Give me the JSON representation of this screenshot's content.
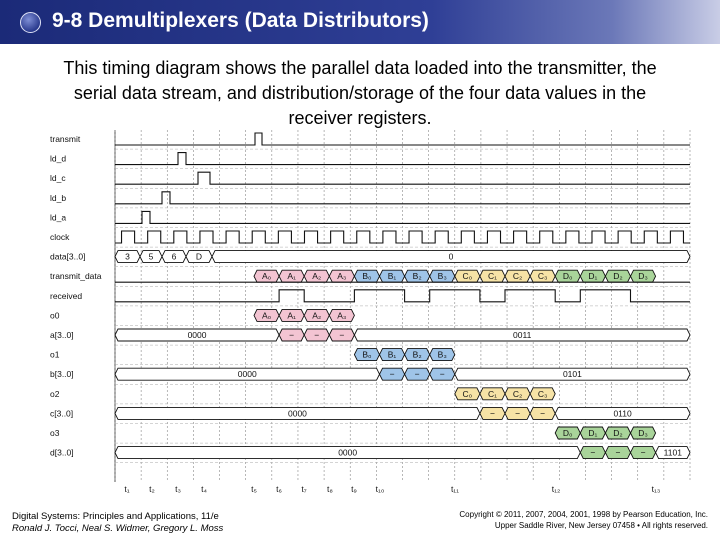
{
  "slide": {
    "title": "9-8 Demultiplexers (Data Distributors)",
    "description": "This timing diagram shows the parallel data loaded into the transmitter, the serial data stream, and distribution/storage of the four data values in the receiver registers."
  },
  "diagram": {
    "signals": [
      "transmit",
      "ld_d",
      "ld_c",
      "ld_b",
      "ld_a",
      "clock",
      "data[3..0]",
      "transmit_data",
      "received",
      "o0",
      "a[3..0]",
      "o1",
      "b[3..0]",
      "o2",
      "c[3..0]",
      "o3",
      "d[3..0]"
    ],
    "data_values": [
      "3",
      "5",
      "6",
      "D",
      "0"
    ],
    "group_a": [
      "A₀",
      "A₁",
      "A₂",
      "A₃"
    ],
    "group_b": [
      "B₀",
      "B₁",
      "B₂",
      "B₃"
    ],
    "group_c": [
      "C₀",
      "C₁",
      "C₂",
      "C₃"
    ],
    "group_d": [
      "D₀",
      "D₁",
      "D₂",
      "D₃"
    ],
    "reg_a": [
      "0000",
      "0011"
    ],
    "reg_b": [
      "0000",
      "0101"
    ],
    "reg_c": [
      "0000",
      "0110"
    ],
    "reg_d": [
      "0000",
      "1101"
    ],
    "transition_mark": "−",
    "time_labels": [
      "t₁",
      "t₂",
      "t₃",
      "t₄",
      "t₅",
      "t₆",
      "t₇",
      "t₈",
      "t₉",
      "t₁₀",
      "t₁₁",
      "t₁₂",
      "t₁₃"
    ],
    "colors": {
      "a": "#f3c4d2",
      "b": "#9fc4e8",
      "c": "#f6e3a6",
      "d": "#a9d49a",
      "ink": "#111111",
      "grid": "#555555"
    }
  },
  "footer": {
    "book": "Digital Systems: Principles and Applications, 11/e",
    "authors": "Ronald J. Tocci, Neal S. Widmer, Gregory L. Moss",
    "copyright": "Copyright © 2011, 2007, 2004, 2001, 1998 by Pearson Education, Inc.",
    "publisher": "Upper Saddle River, New Jersey 07458 • All rights reserved."
  }
}
